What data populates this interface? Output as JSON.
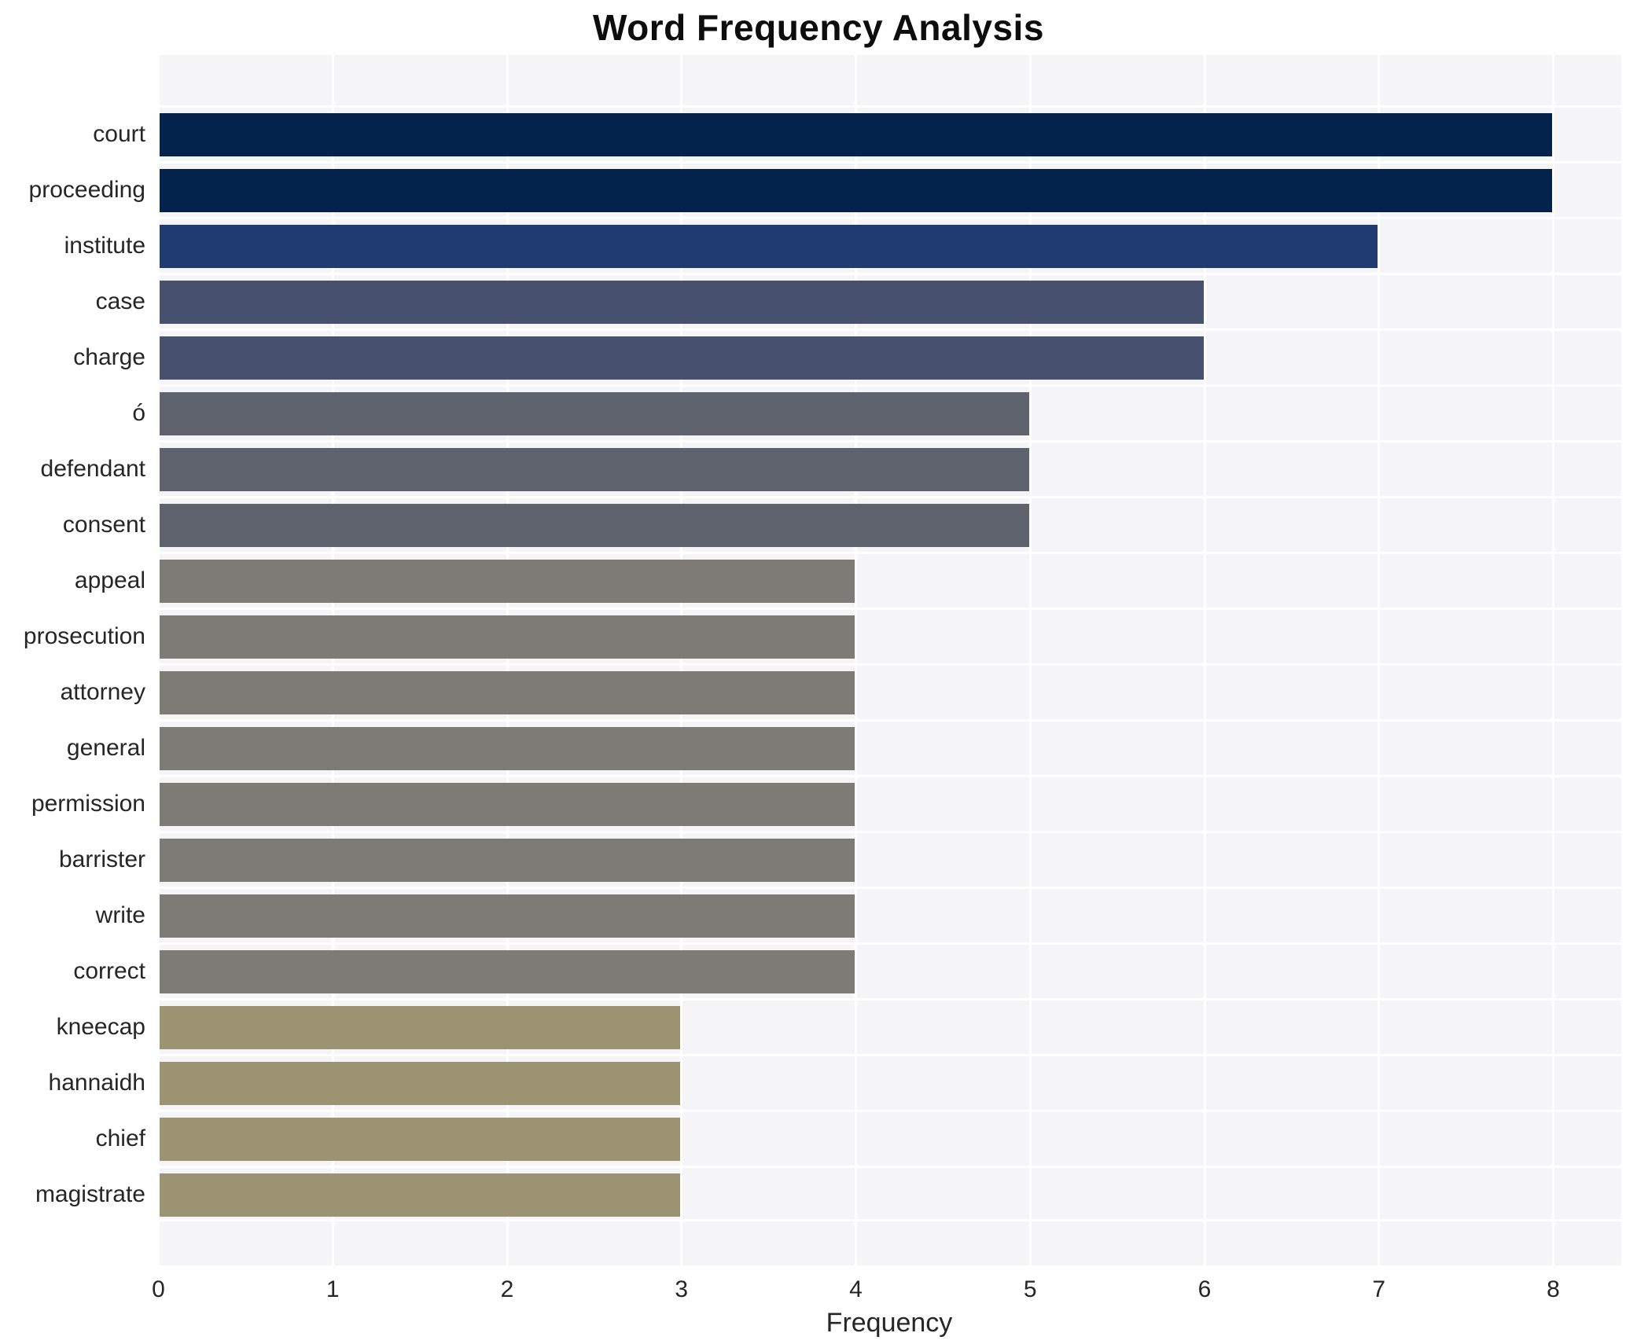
{
  "title": "Word Frequency Analysis",
  "chart_data": {
    "type": "bar",
    "orientation": "horizontal",
    "title": "Word Frequency Analysis",
    "xlabel": "Frequency",
    "ylabel": "",
    "xlim": [
      0,
      8.4
    ],
    "xticks": [
      "0",
      "1",
      "2",
      "3",
      "4",
      "5",
      "6",
      "7",
      "8"
    ],
    "grid": true,
    "legend": false,
    "plot_background": "#f5f5f7",
    "grid_color": "#ffffff",
    "categories": [
      "court",
      "proceeding",
      "institute",
      "case",
      "charge",
      "ó",
      "defendant",
      "consent",
      "appeal",
      "prosecution",
      "attorney",
      "general",
      "permission",
      "barrister",
      "write",
      "correct",
      "kneecap",
      "hannaidh",
      "chief",
      "magistrate"
    ],
    "values": [
      8,
      8,
      7,
      6,
      6,
      5,
      5,
      5,
      4,
      4,
      4,
      4,
      4,
      4,
      4,
      4,
      3,
      3,
      3,
      3
    ],
    "bar_colors": [
      "#03224c",
      "#03224c",
      "#1f3b6f",
      "#47516d",
      "#47516d",
      "#5f636e",
      "#5f636e",
      "#5f636e",
      "#7c7b76",
      "#7c7b76",
      "#7c7b76",
      "#7c7b76",
      "#7c7b76",
      "#7c7b76",
      "#7c7b76",
      "#7c7b76",
      "#9b9372",
      "#9b9372",
      "#9b9372",
      "#9b9372"
    ]
  }
}
